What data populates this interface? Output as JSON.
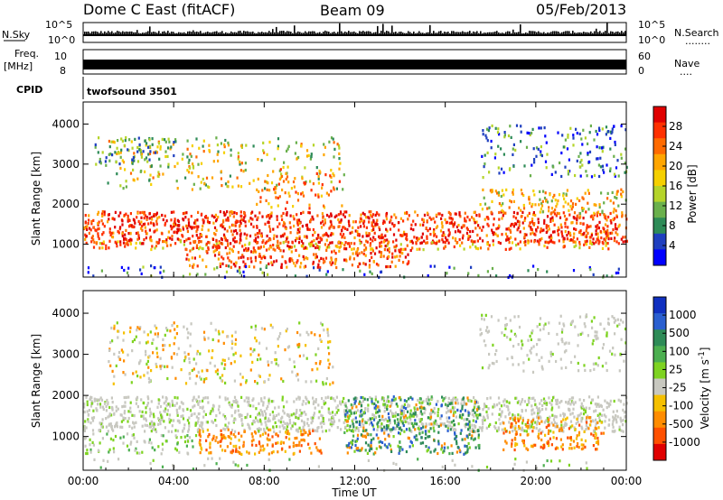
{
  "header": {
    "station": "Dome C East (fitACF)",
    "beam": "Beam 09",
    "date": "05/Feb/2013"
  },
  "strip_panels": {
    "nsky_label": "N.Sky",
    "nsearch_label": "N.Search",
    "nsearch_dots": "........",
    "nsky_ticks": [
      "10^5",
      "10^0"
    ],
    "nsearch_ticks": [
      "10^5",
      "10^0"
    ],
    "freq_label_1": "Freq.",
    "freq_label_2": "[MHz]",
    "freq_ticks": [
      "10",
      "8"
    ],
    "nave_label": "Nave",
    "nave_dots": "....",
    "nave_ticks": [
      "60",
      "0"
    ],
    "cpid_label": "CPID",
    "cpid_value": "twofsound 3501"
  },
  "chart_data": [
    {
      "type": "heatmap",
      "panel": "power",
      "ylabel": "Slant Range [km]",
      "xlabel": "",
      "x_ticks": [
        "00:00",
        "04:00",
        "08:00",
        "12:00",
        "16:00",
        "20:00",
        "00:00"
      ],
      "x_range_hours": [
        0,
        24
      ],
      "y_ticks": [
        1000,
        2000,
        3000,
        4000
      ],
      "ylim": [
        180,
        4550
      ],
      "colorbar": {
        "label": "Power [dB]",
        "ticks": [
          4,
          8,
          12,
          16,
          20,
          24,
          28
        ],
        "colors": [
          "#0000ff",
          "#1f3fbf",
          "#2e8b57",
          "#6ab04c",
          "#b5d42a",
          "#f5d000",
          "#ffa500",
          "#ff6a00",
          "#ff3000",
          "#e00000"
        ]
      },
      "features": [
        {
          "range_km": [
            900,
            1900
          ],
          "hours": [
            0,
            24
          ],
          "dominant": "red",
          "desc": "strong band"
        },
        {
          "range_km": [
            2400,
            3900
          ],
          "hours": [
            1,
            12
          ],
          "dominant": "green",
          "desc": "patchy echoes"
        },
        {
          "range_km": [
            2600,
            4000
          ],
          "hours": [
            17.5,
            24
          ],
          "dominant": "blue",
          "desc": "far range echoes"
        }
      ]
    },
    {
      "type": "heatmap",
      "panel": "velocity",
      "ylabel": "Slant Range [km]",
      "xlabel": "Time UT",
      "x_ticks": [
        "00:00",
        "04:00",
        "08:00",
        "12:00",
        "16:00",
        "20:00",
        "00:00"
      ],
      "x_range_hours": [
        0,
        24
      ],
      "y_ticks": [
        1000,
        2000,
        3000,
        4000
      ],
      "ylim": [
        180,
        4550
      ],
      "colorbar": {
        "label": "Velocity [m s^-1]",
        "ticks": [
          1000,
          500,
          100,
          25,
          -25,
          -100,
          -500,
          -1000
        ],
        "colors": [
          "#1030c0",
          "#2a5fd0",
          "#2e8b57",
          "#4caf50",
          "#7ed321",
          "#c8c8c0",
          "#f5c000",
          "#ff8c00",
          "#ff5000",
          "#e00000"
        ]
      },
      "features": [
        {
          "range_km": [
            1100,
            2000
          ],
          "hours": [
            0,
            24
          ],
          "dominant": "grey",
          "desc": "ground scatter band"
        },
        {
          "range_km": [
            600,
            1200
          ],
          "hours": [
            5,
            10.5
          ],
          "dominant": "orange",
          "desc": "negative velocities"
        },
        {
          "range_km": [
            600,
            2000
          ],
          "hours": [
            11.5,
            17.5
          ],
          "dominant": "green",
          "desc": "positive velocities"
        },
        {
          "range_km": [
            700,
            1500
          ],
          "hours": [
            18.5,
            23
          ],
          "dominant": "orange",
          "desc": "negative velocities"
        }
      ]
    }
  ]
}
